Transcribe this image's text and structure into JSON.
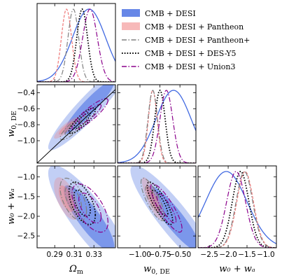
{
  "chart_data": {
    "type": "corner",
    "parameters": [
      {
        "key": "om",
        "label": "Ω",
        "sub": "m",
        "range": [
          0.272,
          0.352
        ],
        "ticks": [
          0.29,
          0.31,
          0.33
        ],
        "tick_labels": [
          "0.29",
          "0.31",
          "0.33"
        ]
      },
      {
        "key": "w0",
        "label": "w",
        "sub": "0, DE",
        "range": [
          -1.28,
          -0.3
        ],
        "ticks": [
          -1.0,
          -0.75,
          -0.5
        ],
        "tick_labels": [
          "−1.00",
          "−0.75",
          "−0.50"
        ],
        "yticks": [
          -1.0,
          -0.8,
          -0.6,
          -0.4
        ],
        "ytick_labels": [
          "−1.0",
          "−0.8",
          "−0.6",
          "−0.4"
        ]
      },
      {
        "key": "w0wa",
        "label": "w₀ + wₐ",
        "sub": "",
        "range": [
          -2.8,
          -0.72
        ],
        "ticks": [
          -2.5,
          -2.0,
          -1.5,
          -1.0
        ],
        "tick_labels": [
          "−2.5",
          "−2.0",
          "−1.5",
          "−1.0"
        ],
        "yticks": [
          -2.5,
          -2.0,
          -1.5,
          -1.0
        ],
        "ytick_labels": [
          "−2.5",
          "−2.0",
          "−1.5",
          "−1.0"
        ]
      }
    ],
    "axis_labels": {
      "x": [
        "Ωm",
        "w0,DE",
        "w0 + wa"
      ],
      "y": [
        "w0,DE",
        "w0 + wa"
      ]
    },
    "legend": {
      "placement": "top-right"
    },
    "series": [
      {
        "name": "CMB + DESI",
        "color": "#4169e1",
        "style": "filled",
        "mean": {
          "om": 0.325,
          "w0": -0.58,
          "w0wa": -2.05
        },
        "sigma": {
          "om": 0.017,
          "w0": 0.22,
          "w0wa": 0.55
        },
        "corr": {
          "om_w0": 0.93,
          "om_w0wa": -0.85,
          "w0_w0wa": -0.9
        }
      },
      {
        "name": "CMB + DESI + Pantheon",
        "color": "#f08080",
        "style": "filled",
        "mean": {
          "om": 0.302,
          "w0": -0.84,
          "w0wa": -1.55
        },
        "sigma": {
          "om": 0.0052,
          "w0": 0.055,
          "w0wa": 0.22
        },
        "corr": {
          "om_w0": 0.88,
          "om_w0wa": -0.6,
          "w0_w0wa": -0.82
        }
      },
      {
        "name": "CMB + DESI + Pantheon+",
        "color": "#808080",
        "style": "dashdot",
        "mean": {
          "om": 0.309,
          "w0": -0.84,
          "w0wa": -1.57
        },
        "sigma": {
          "om": 0.0055,
          "w0": 0.06,
          "w0wa": 0.22
        },
        "corr": {
          "om_w0": 0.85,
          "om_w0wa": -0.55,
          "w0_w0wa": -0.8
        }
      },
      {
        "name": "CMB + DESI + DES-Y5",
        "color": "#000000",
        "style": "dotted",
        "mean": {
          "om": 0.318,
          "w0": -0.75,
          "w0wa": -1.67
        },
        "sigma": {
          "om": 0.0055,
          "w0": 0.065,
          "w0wa": 0.22
        },
        "corr": {
          "om_w0": 0.85,
          "om_w0wa": -0.55,
          "w0_w0wa": -0.82
        }
      },
      {
        "name": "CMB + DESI + Union3",
        "color": "#8b008b",
        "style": "dashdot",
        "mean": {
          "om": 0.326,
          "w0": -0.67,
          "w0wa": -1.79
        },
        "sigma": {
          "om": 0.0075,
          "w0": 0.08,
          "w0wa": 0.25
        },
        "corr": {
          "om_w0": 0.88,
          "om_w0wa": -0.6,
          "w0_w0wa": -0.85
        }
      }
    ],
    "reference_line": {
      "panel": "om-w0",
      "from": [
        0.272,
        -1.28
      ],
      "to": [
        0.352,
        -0.36
      ]
    }
  }
}
